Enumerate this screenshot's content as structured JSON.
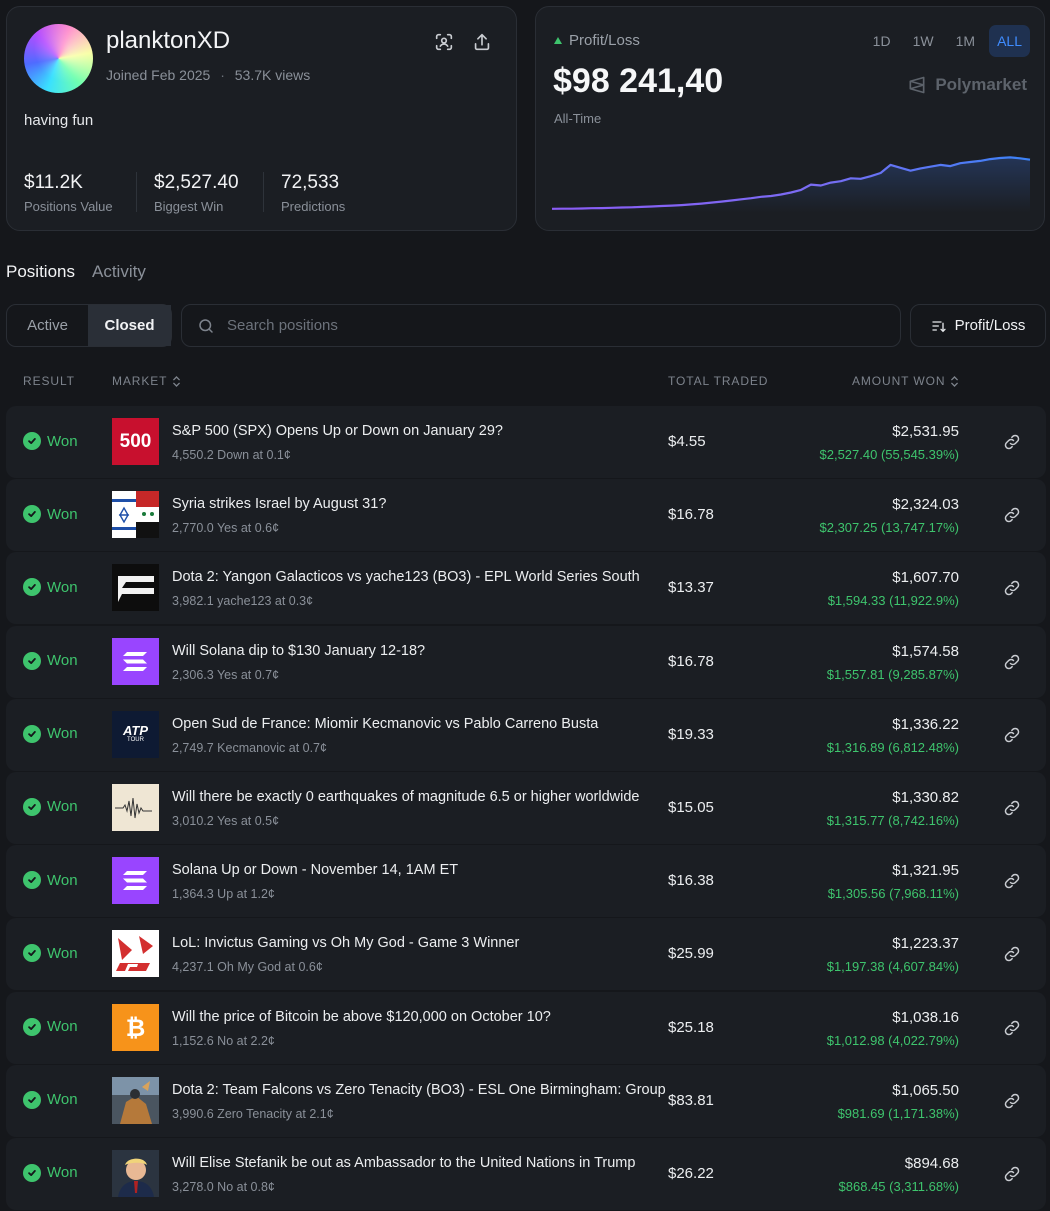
{
  "profile": {
    "username": "planktonXD",
    "joined": "Joined Feb 2025",
    "views": "53.7K views",
    "bio": "having fun",
    "stats": [
      {
        "value": "$11.2K",
        "label": "Positions Value"
      },
      {
        "value": "$2,527.40",
        "label": "Biggest Win"
      },
      {
        "value": "72,533",
        "label": "Predictions"
      }
    ],
    "icons": [
      "scan-icon",
      "share-icon"
    ]
  },
  "pnl": {
    "label": "Profit/Loss",
    "value": "$98 241,40",
    "period": "All-Time",
    "ranges": [
      "1D",
      "1W",
      "1M",
      "ALL"
    ],
    "active_range": "ALL",
    "brand": "Polymarket",
    "colors": {
      "line_start": "#8b5cf6",
      "line_end": "#3b82f6",
      "up": "#3ec46d"
    }
  },
  "chart_data": {
    "type": "line",
    "series": [
      {
        "values": [
          0.3,
          0.5,
          0.6,
          0.9,
          1.3,
          1.6,
          2.0,
          2.5,
          3.0,
          3.6,
          4.3,
          5.1,
          5.9,
          6.8,
          8.0,
          9.3,
          11.0,
          12.7,
          14.6,
          16.8,
          18.6,
          21.0,
          22.5,
          25.0,
          28.5,
          33.0,
          42.0,
          40.5,
          45.5,
          48.0,
          53.0,
          52.0,
          56.5,
          62.0,
          76.0,
          71.0,
          66.0,
          70.0,
          73.0,
          76.0,
          74.0,
          79.0,
          81.0,
          83.0,
          86.0,
          88.0,
          89.0,
          87.5,
          85.0
        ]
      }
    ],
    "ylim": [
      0,
      100
    ],
    "grid": false
  },
  "tabs": [
    "Positions",
    "Activity"
  ],
  "active_tab": "Positions",
  "filter": {
    "options": [
      "Active",
      "Closed"
    ],
    "selected": "Closed"
  },
  "search": {
    "placeholder": "Search positions"
  },
  "sort": {
    "label": "Profit/Loss"
  },
  "columns": {
    "result": "RESULT",
    "market": "MARKET",
    "total_traded": "TOTAL TRADED",
    "amount_won": "AMOUNT WON"
  },
  "rows": [
    {
      "result": "Won",
      "title": "S&P 500 (SPX) Opens Up or Down on January 29?",
      "sub": "4,550.2 Down at 0.1¢",
      "traded": "$4.55",
      "won": "$2,531.95",
      "profit": "$2,527.40 (55,545.39%)",
      "thumb": "spx",
      "thumb_text": "500"
    },
    {
      "result": "Won",
      "title": "Syria strikes Israel by August 31?",
      "sub": "2,770.0 Yes at 0.6¢",
      "traded": "$16.78",
      "won": "$2,324.03",
      "profit": "$2,307.25 (13,747.17%)",
      "thumb": "flags"
    },
    {
      "result": "Won",
      "title": "Dota 2: Yangon Galacticos vs yache123 (BO3) - EPL World Series South",
      "sub": "3,982.1 yache123 at 0.3¢",
      "traded": "$13.37",
      "won": "$1,607.70",
      "profit": "$1,594.33 (11,922.9%)",
      "thumb": "epl"
    },
    {
      "result": "Won",
      "title": "Will Solana dip to $130 January 12-18?",
      "sub": "2,306.3 Yes at 0.7¢",
      "traded": "$16.78",
      "won": "$1,574.58",
      "profit": "$1,557.81 (9,285.87%)",
      "thumb": "solana"
    },
    {
      "result": "Won",
      "title": "Open Sud de France: Miomir Kecmanovic vs Pablo Carreno Busta",
      "sub": "2,749.7 Kecmanovic at 0.7¢",
      "traded": "$19.33",
      "won": "$1,336.22",
      "profit": "$1,316.89 (6,812.48%)",
      "thumb": "atp",
      "thumb_text": "ATP",
      "thumb_sub": "TOUR"
    },
    {
      "result": "Won",
      "title": "Will there be exactly 0 earthquakes of magnitude 6.5 or higher worldwide",
      "sub": "3,010.2 Yes at 0.5¢",
      "traded": "$15.05",
      "won": "$1,330.82",
      "profit": "$1,315.77 (8,742.16%)",
      "thumb": "quake"
    },
    {
      "result": "Won",
      "title": "Solana Up or Down - November 14, 1AM ET",
      "sub": "1,364.3 Up at 1.2¢",
      "traded": "$16.38",
      "won": "$1,321.95",
      "profit": "$1,305.56 (7,968.11%)",
      "thumb": "solana"
    },
    {
      "result": "Won",
      "title": "LoL: Invictus Gaming vs Oh My God - Game 3 Winner",
      "sub": "4,237.1 Oh My God at 0.6¢",
      "traded": "$25.99",
      "won": "$1,223.37",
      "profit": "$1,197.38 (4,607.84%)",
      "thumb": "lpl"
    },
    {
      "result": "Won",
      "title": "Will the price of Bitcoin be above $120,000 on October 10?",
      "sub": "1,152.6 No at 2.2¢",
      "traded": "$25.18",
      "won": "$1,038.16",
      "profit": "$1,012.98 (4,022.79%)",
      "thumb": "bitcoin"
    },
    {
      "result": "Won",
      "title": "Dota 2: Team Falcons vs Zero Tenacity (BO3) - ESL One Birmingham: Group",
      "sub": "3,990.6 Zero Tenacity at 2.1¢",
      "traded": "$83.81",
      "won": "$1,065.50",
      "profit": "$981.69 (1,171.38%)",
      "thumb": "dota"
    },
    {
      "result": "Won",
      "title": "Will Elise Stefanik be out as Ambassador to the United Nations in Trump",
      "sub": "3,278.0 No at 0.8¢",
      "traded": "$26.22",
      "won": "$894.68",
      "profit": "$868.45 (3,311.68%)",
      "thumb": "person"
    }
  ]
}
